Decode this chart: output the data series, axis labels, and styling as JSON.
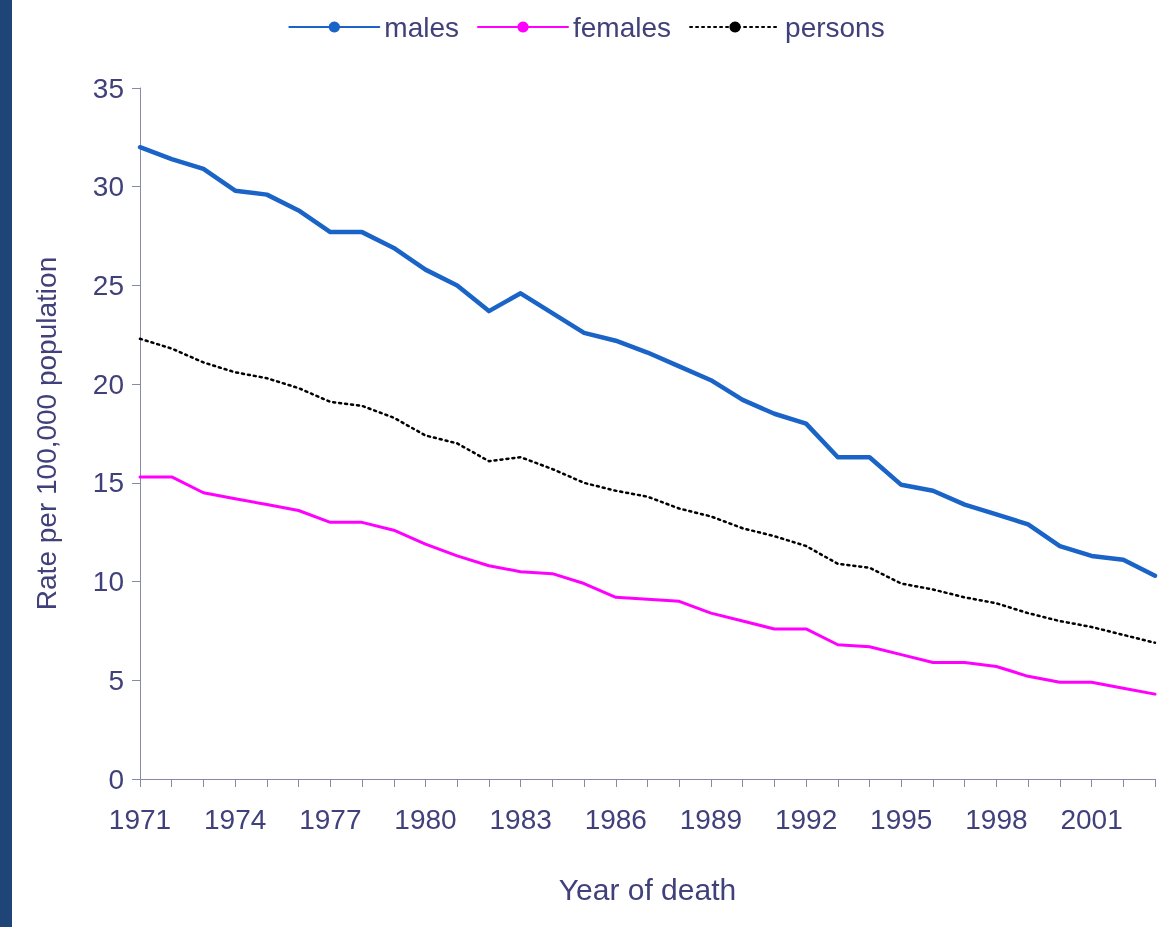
{
  "chart_data": {
    "type": "line",
    "xlabel": "Year of death",
    "ylabel": "Rate per 100,000 population",
    "categories": [
      "1971",
      null,
      null,
      "1974",
      null,
      null,
      "1977",
      null,
      null,
      "1980",
      null,
      null,
      "1983",
      null,
      null,
      "1986",
      null,
      null,
      "1989",
      null,
      null,
      "1992",
      null,
      null,
      "1995",
      null,
      null,
      "1998",
      null,
      null,
      "2001",
      null,
      null
    ],
    "series": [
      {
        "name": "males",
        "color": "#1a64c8",
        "values": [
          32.0,
          31.4,
          30.9,
          29.8,
          29.6,
          28.8,
          27.7,
          27.7,
          26.9,
          25.8,
          25.0,
          23.7,
          24.6,
          23.6,
          22.6,
          22.2,
          21.6,
          20.9,
          20.2,
          19.2,
          18.5,
          18.0,
          16.3,
          16.3,
          14.9,
          14.6,
          13.9,
          13.4,
          12.9,
          11.8,
          11.3,
          11.1,
          10.3
        ]
      },
      {
        "name": "females",
        "color": "#ff00ff",
        "values": [
          15.3,
          15.3,
          14.5,
          14.2,
          13.9,
          13.6,
          13.0,
          13.0,
          12.6,
          11.9,
          11.3,
          10.8,
          10.5,
          10.4,
          9.9,
          9.2,
          9.1,
          9.0,
          8.4,
          8.0,
          7.6,
          7.6,
          6.8,
          6.7,
          6.3,
          5.9,
          5.9,
          5.7,
          5.2,
          4.9,
          4.9,
          4.6,
          4.3
        ]
      },
      {
        "name": "persons",
        "color": "#000000",
        "line_style": "dotted",
        "values": [
          22.3,
          21.8,
          21.1,
          20.6,
          20.3,
          19.8,
          19.1,
          18.9,
          18.3,
          17.4,
          17.0,
          16.1,
          16.3,
          15.7,
          15.0,
          14.6,
          14.3,
          13.7,
          13.3,
          12.7,
          12.3,
          11.8,
          10.9,
          10.7,
          9.9,
          9.6,
          9.2,
          8.9,
          8.4,
          8.0,
          7.7,
          7.3,
          6.9
        ]
      }
    ],
    "ylim": [
      0,
      35
    ],
    "yticks": [
      0,
      5,
      10,
      15,
      20,
      25,
      30,
      35
    ],
    "grid": false,
    "legend": "top",
    "marker": "none",
    "line_style": "solid"
  }
}
